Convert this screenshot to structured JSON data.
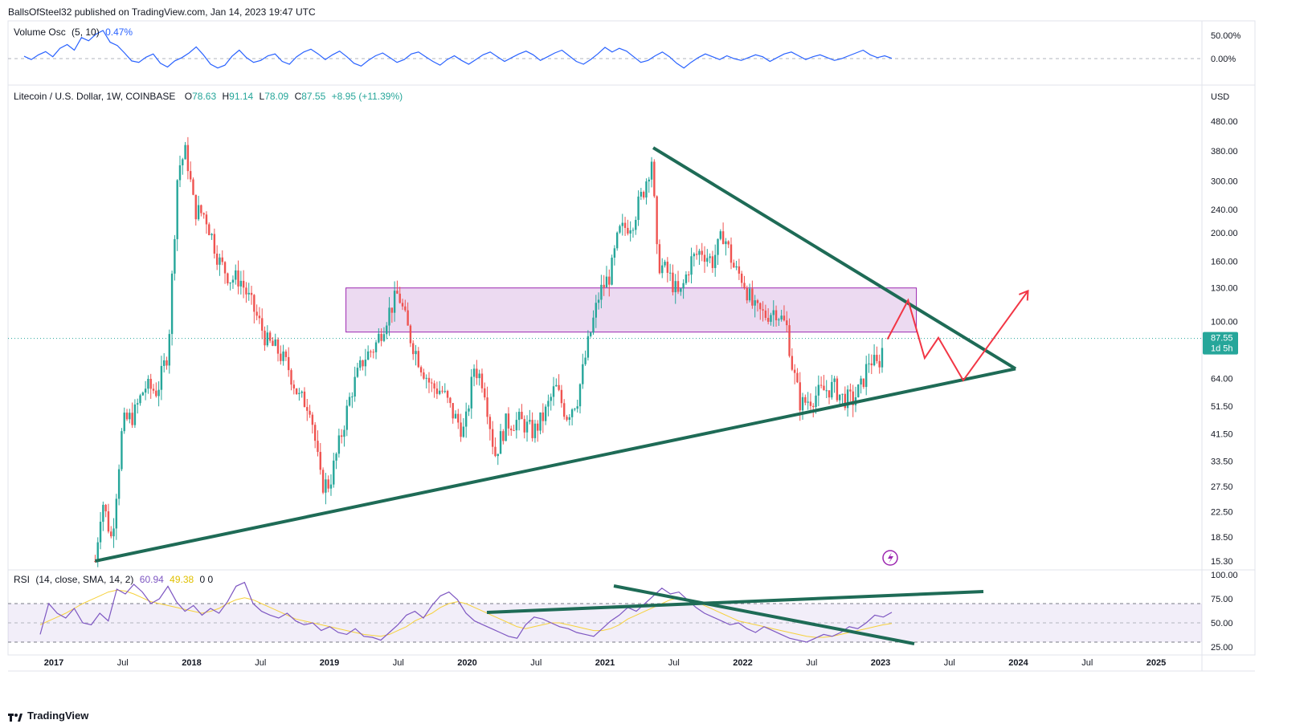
{
  "header": {
    "published": "BallsOfSteel32 published on TradingView.com, Jan 14, 2023 19:47 UTC"
  },
  "footer": {
    "brand": "TradingView"
  },
  "colors": {
    "up": "#26a69a",
    "down": "#ef5350",
    "trend": "#1e6b56",
    "zone_fill": "#e9d3ef",
    "zone_stroke": "#9c27b0",
    "osc": "#2962ff",
    "rsi": "#7e57c2",
    "rsi_ma": "#f6d13b",
    "projection": "#f23645",
    "last_price_bg": "#26a69a"
  },
  "volume_panel": {
    "name": "Volume Osc",
    "params": "(5, 10)",
    "value": "0.47%",
    "axis": [
      "50.00%",
      "0.00%"
    ]
  },
  "main_panel": {
    "symbol": "Litecoin / U.S. Dollar, 1W, COINBASE",
    "o_label": "O",
    "o_value": "78.63",
    "h_label": "H",
    "h_value": "91.14",
    "l_label": "L",
    "l_value": "78.09",
    "c_label": "C",
    "c_value": "87.55",
    "change": "+8.95 (+11.39%)",
    "currency": "USD",
    "last_price": "87.55",
    "countdown": "1d 5h"
  },
  "rsi_panel": {
    "name": "RSI",
    "params": "(14, close, SMA, 14, 2)",
    "rsi_value": "60.94",
    "ma_value": "49.38",
    "extra": "0  0",
    "axis": [
      "100.00",
      "75.00",
      "50.00",
      "25.00"
    ]
  },
  "chart_data": {
    "type": "candlestick",
    "scale": "log",
    "price_axis_ticks": [
      "480.00",
      "380.00",
      "300.00",
      "240.00",
      "200.00",
      "160.00",
      "130.00",
      "100.00",
      "64.00",
      "51.50",
      "41.50",
      "33.50",
      "27.50",
      "22.50",
      "18.50",
      "15.30"
    ],
    "price_axis_values": [
      480,
      380,
      300,
      240,
      200,
      160,
      130,
      100,
      64,
      51.5,
      41.5,
      33.5,
      27.5,
      22.5,
      18.5,
      15.3
    ],
    "time_axis": [
      "2017",
      "Jul",
      "2018",
      "Jul",
      "2019",
      "Jul",
      "2020",
      "Jul",
      "2021",
      "Jul",
      "2022",
      "Jul",
      "2023",
      "Jul",
      "2024",
      "Jul",
      "2025"
    ],
    "time_axis_years": [
      2017.0,
      2017.5,
      2018.0,
      2018.5,
      2019.0,
      2019.5,
      2020.0,
      2020.5,
      2021.0,
      2021.5,
      2022.0,
      2022.5,
      2023.0,
      2023.5,
      2024.0,
      2024.5,
      2025.0
    ],
    "price_path": [
      [
        2017.3,
        15.3
      ],
      [
        2017.35,
        25
      ],
      [
        2017.42,
        18
      ],
      [
        2017.5,
        45
      ],
      [
        2017.58,
        48
      ],
      [
        2017.66,
        60
      ],
      [
        2017.75,
        58
      ],
      [
        2017.83,
        80
      ],
      [
        2017.9,
        330
      ],
      [
        2017.96,
        380
      ],
      [
        2018.02,
        240
      ],
      [
        2018.1,
        230
      ],
      [
        2018.2,
        160
      ],
      [
        2018.28,
        140
      ],
      [
        2018.35,
        140
      ],
      [
        2018.45,
        110
      ],
      [
        2018.55,
        85
      ],
      [
        2018.62,
        80
      ],
      [
        2018.7,
        70
      ],
      [
        2018.78,
        55
      ],
      [
        2018.86,
        52
      ],
      [
        2018.94,
        28
      ],
      [
        2019.0,
        28
      ],
      [
        2019.08,
        40
      ],
      [
        2019.16,
        58
      ],
      [
        2019.25,
        75
      ],
      [
        2019.33,
        82
      ],
      [
        2019.42,
        105
      ],
      [
        2019.5,
        125
      ],
      [
        2019.58,
        90
      ],
      [
        2019.66,
        72
      ],
      [
        2019.74,
        60
      ],
      [
        2019.82,
        58
      ],
      [
        2019.9,
        48
      ],
      [
        2019.98,
        42
      ],
      [
        2020.05,
        70
      ],
      [
        2020.12,
        62
      ],
      [
        2020.2,
        35
      ],
      [
        2020.28,
        45
      ],
      [
        2020.38,
        46
      ],
      [
        2020.48,
        42
      ],
      [
        2020.56,
        48
      ],
      [
        2020.64,
        60
      ],
      [
        2020.72,
        48
      ],
      [
        2020.8,
        55
      ],
      [
        2020.88,
        85
      ],
      [
        2020.96,
        125
      ],
      [
        2021.04,
        145
      ],
      [
        2021.1,
        200
      ],
      [
        2021.2,
        220
      ],
      [
        2021.28,
        280
      ],
      [
        2021.34,
        360
      ],
      [
        2021.38,
        160
      ],
      [
        2021.46,
        145
      ],
      [
        2021.54,
        120
      ],
      [
        2021.62,
        160
      ],
      [
        2021.7,
        175
      ],
      [
        2021.78,
        160
      ],
      [
        2021.86,
        200
      ],
      [
        2021.94,
        150
      ],
      [
        2022.0,
        140
      ],
      [
        2022.08,
        110
      ],
      [
        2022.16,
        105
      ],
      [
        2022.24,
        110
      ],
      [
        2022.32,
        95
      ],
      [
        2022.36,
        70
      ],
      [
        2022.42,
        52
      ],
      [
        2022.5,
        55
      ],
      [
        2022.58,
        58
      ],
      [
        2022.66,
        60
      ],
      [
        2022.72,
        55
      ],
      [
        2022.8,
        54
      ],
      [
        2022.86,
        60
      ],
      [
        2022.92,
        75
      ],
      [
        2022.98,
        70
      ],
      [
        2023.03,
        87.55
      ]
    ],
    "drawings": {
      "support_line": [
        [
          2017.3,
          15.3
        ],
        [
          2023.98,
          69
        ]
      ],
      "resistance_line": [
        [
          2021.35,
          390
        ],
        [
          2023.98,
          69
        ]
      ],
      "zone": {
        "x1": 2019.12,
        "x2": 2023.26,
        "y_top": 130,
        "y_bottom": 92
      },
      "projection": [
        [
          2023.05,
          87
        ],
        [
          2023.2,
          118
        ],
        [
          2023.32,
          75
        ],
        [
          2023.42,
          88
        ],
        [
          2023.6,
          63
        ],
        [
          2024.07,
          127
        ]
      ]
    },
    "volume_osc": {
      "axis_range": [
        -25,
        60
      ],
      "values": [
        5,
        -2,
        8,
        15,
        4,
        22,
        30,
        18,
        45,
        38,
        52,
        60,
        35,
        28,
        12,
        -5,
        -8,
        3,
        10,
        -10,
        -18,
        -5,
        2,
        12,
        25,
        8,
        -12,
        -20,
        -14,
        5,
        18,
        2,
        -8,
        -4,
        6,
        10,
        -6,
        -12,
        4,
        14,
        20,
        10,
        -2,
        8,
        16,
        4,
        -10,
        -16,
        -4,
        6,
        12,
        2,
        -8,
        -2,
        10,
        14,
        4,
        -6,
        -14,
        -2,
        6,
        -4,
        -12,
        -2,
        8,
        14,
        4,
        -6,
        2,
        10,
        16,
        8,
        -4,
        4,
        12,
        18,
        6,
        -6,
        -12,
        -2,
        10,
        24,
        14,
        22,
        16,
        4,
        -8,
        -4,
        6,
        14,
        4,
        -10,
        -20,
        -8,
        2,
        10,
        4,
        -2,
        6,
        0,
        -4,
        2,
        8,
        4,
        -6,
        2,
        10,
        14,
        6,
        -2,
        4,
        8,
        2,
        -4,
        0,
        6,
        12,
        18,
        8,
        2,
        6,
        0.47
      ]
    },
    "rsi": {
      "axis_range": [
        20,
        100
      ],
      "values": [
        38,
        70,
        60,
        55,
        65,
        50,
        48,
        60,
        52,
        85,
        80,
        90,
        82,
        70,
        75,
        88,
        72,
        62,
        68,
        58,
        65,
        60,
        72,
        88,
        92,
        70,
        62,
        58,
        55,
        60,
        52,
        48,
        50,
        42,
        46,
        40,
        38,
        44,
        36,
        35,
        32,
        40,
        48,
        58,
        62,
        55,
        68,
        78,
        82,
        74,
        60,
        52,
        48,
        44,
        40,
        36,
        34,
        48,
        56,
        54,
        50,
        46,
        44,
        40,
        38,
        36,
        44,
        52,
        58,
        66,
        62,
        70,
        78,
        86,
        80,
        82,
        74,
        66,
        60,
        56,
        52,
        48,
        50,
        44,
        40,
        46,
        42,
        38,
        34,
        32,
        30,
        34,
        38,
        36,
        40,
        46,
        44,
        50,
        58,
        56,
        60.94
      ],
      "ma_values": [
        48,
        52,
        56,
        60,
        65,
        70,
        74,
        78,
        82,
        84,
        83,
        80,
        76,
        72,
        70,
        68,
        66,
        64,
        62,
        60,
        62,
        65,
        70,
        74,
        76,
        74,
        70,
        66,
        62,
        58,
        54,
        52,
        50,
        48,
        46,
        44,
        42,
        40,
        38,
        37,
        36,
        38,
        42,
        46,
        52,
        56,
        60,
        66,
        70,
        72,
        70,
        66,
        62,
        58,
        54,
        50,
        46,
        44,
        46,
        48,
        50,
        50,
        48,
        46,
        44,
        42,
        42,
        44,
        48,
        54,
        58,
        62,
        66,
        70,
        74,
        76,
        74,
        72,
        68,
        64,
        60,
        56,
        52,
        50,
        48,
        46,
        44,
        42,
        40,
        38,
        36,
        35,
        35,
        36,
        38,
        40,
        42,
        44,
        46,
        48,
        49.38
      ]
    }
  }
}
